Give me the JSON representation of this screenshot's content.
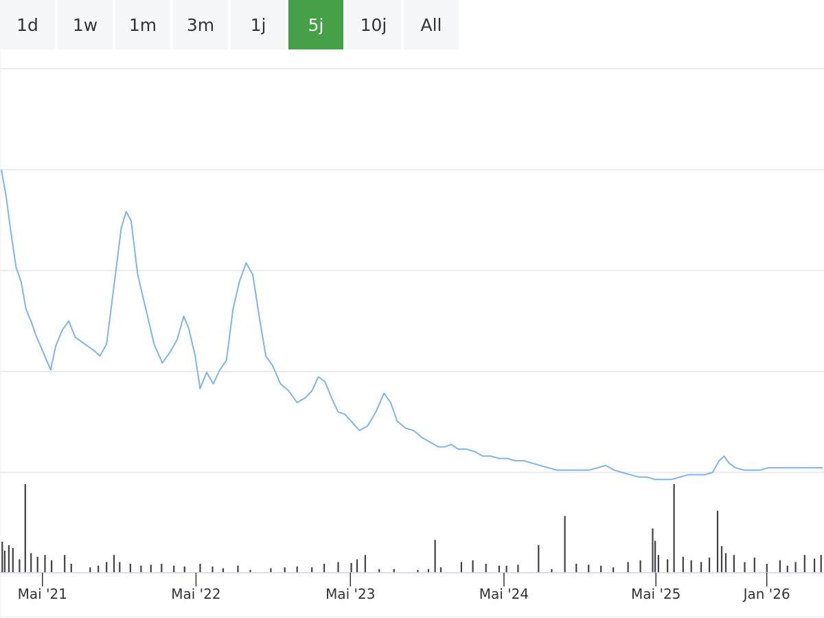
{
  "range_selector": {
    "buttons": [
      "1d",
      "1w",
      "1m",
      "3m",
      "1j",
      "5j",
      "10j",
      "All"
    ],
    "active": "5j"
  },
  "colors": {
    "active_button": "#43a047",
    "button_bg": "#f6f7f8",
    "price_line": "#7cb5ec",
    "volume_bars": "#3f3f44",
    "gridlines": "#e6e6e6",
    "axis_line": "#ccd6eb"
  },
  "chart_data": [
    {
      "type": "line",
      "series": [
        {
          "values": [
            [
              0.0,
              100
            ],
            [
              0.006,
              88
            ],
            [
              0.012,
              72
            ],
            [
              0.018,
              58
            ],
            [
              0.024,
              52
            ],
            [
              0.03,
              40
            ],
            [
              0.036,
              35
            ],
            [
              0.042,
              29
            ],
            [
              0.048,
              24
            ],
            [
              0.054,
              19
            ],
            [
              0.06,
              14
            ],
            [
              0.066,
              24
            ],
            [
              0.074,
              31
            ],
            [
              0.082,
              35
            ],
            [
              0.09,
              28
            ],
            [
              0.098,
              26
            ],
            [
              0.106,
              24
            ],
            [
              0.114,
              22
            ],
            [
              0.12,
              20
            ],
            [
              0.128,
              25
            ],
            [
              0.136,
              47
            ],
            [
              0.146,
              75
            ],
            [
              0.152,
              82
            ],
            [
              0.158,
              78
            ],
            [
              0.166,
              55
            ],
            [
              0.176,
              40
            ],
            [
              0.186,
              25
            ],
            [
              0.196,
              17
            ],
            [
              0.206,
              22
            ],
            [
              0.214,
              27
            ],
            [
              0.222,
              37
            ],
            [
              0.228,
              32
            ],
            [
              0.236,
              20
            ],
            [
              0.242,
              6
            ],
            [
              0.25,
              13
            ],
            [
              0.258,
              8
            ],
            [
              0.266,
              14
            ],
            [
              0.274,
              18
            ],
            [
              0.282,
              40
            ],
            [
              0.29,
              52
            ],
            [
              0.298,
              60
            ],
            [
              0.306,
              55
            ],
            [
              0.314,
              37
            ],
            [
              0.322,
              20
            ],
            [
              0.33,
              16
            ],
            [
              0.34,
              8
            ],
            [
              0.35,
              5
            ],
            [
              0.36,
              0
            ],
            [
              0.37,
              2
            ],
            [
              0.378,
              5
            ],
            [
              0.386,
              11
            ],
            [
              0.394,
              9
            ],
            [
              0.402,
              2
            ],
            [
              0.41,
              -4
            ],
            [
              0.418,
              -5
            ],
            [
              0.426,
              -8
            ],
            [
              0.436,
              -12
            ],
            [
              0.446,
              -10
            ],
            [
              0.456,
              -4
            ],
            [
              0.466,
              4
            ],
            [
              0.474,
              0
            ],
            [
              0.482,
              -8
            ],
            [
              0.492,
              -11
            ],
            [
              0.502,
              -12
            ],
            [
              0.512,
              -15
            ],
            [
              0.522,
              -17
            ],
            [
              0.532,
              -19
            ],
            [
              0.54,
              -19
            ],
            [
              0.548,
              -18
            ],
            [
              0.556,
              -20
            ],
            [
              0.566,
              -20
            ],
            [
              0.576,
              -21
            ],
            [
              0.586,
              -23
            ],
            [
              0.596,
              -23
            ],
            [
              0.606,
              -24
            ],
            [
              0.616,
              -24
            ],
            [
              0.626,
              -25
            ],
            [
              0.636,
              -25
            ],
            [
              0.646,
              -26
            ],
            [
              0.656,
              -27
            ],
            [
              0.666,
              -28
            ],
            [
              0.676,
              -29
            ],
            [
              0.686,
              -29
            ],
            [
              0.696,
              -29
            ],
            [
              0.706,
              -29
            ],
            [
              0.716,
              -29
            ],
            [
              0.726,
              -28
            ],
            [
              0.736,
              -27
            ],
            [
              0.746,
              -29
            ],
            [
              0.756,
              -30
            ],
            [
              0.766,
              -31
            ],
            [
              0.776,
              -32
            ],
            [
              0.786,
              -32
            ],
            [
              0.796,
              -33
            ],
            [
              0.806,
              -33
            ],
            [
              0.816,
              -33
            ],
            [
              0.826,
              -32
            ],
            [
              0.836,
              -31
            ],
            [
              0.846,
              -31
            ],
            [
              0.856,
              -31
            ],
            [
              0.866,
              -30
            ],
            [
              0.874,
              -25
            ],
            [
              0.88,
              -23
            ],
            [
              0.886,
              -26
            ],
            [
              0.894,
              -28
            ],
            [
              0.904,
              -29
            ],
            [
              0.914,
              -29
            ],
            [
              0.924,
              -29
            ],
            [
              0.934,
              -28
            ],
            [
              0.944,
              -28
            ],
            [
              0.954,
              -28
            ],
            [
              0.964,
              -28
            ],
            [
              0.974,
              -28
            ],
            [
              0.984,
              -28
            ],
            [
              0.992,
              -28
            ],
            [
              1.0,
              -28
            ]
          ]
        }
      ],
      "x_ticks": [
        {
          "label": "Mai '21",
          "x": 0.05
        },
        {
          "label": "Mai '22",
          "x": 0.237
        },
        {
          "label": "Mai '23",
          "x": 0.425
        },
        {
          "label": "Mai '24",
          "x": 0.612
        },
        {
          "label": "Mai '25",
          "x": 0.797
        },
        {
          "label": "Jan '26",
          "x": 0.932
        }
      ],
      "ylim": [
        -30,
        100
      ],
      "grid": true
    },
    {
      "type": "bar",
      "series": [
        {
          "values": [
            [
              0.001,
              35
            ],
            [
              0.004,
              25
            ],
            [
              0.009,
              31
            ],
            [
              0.014,
              28
            ],
            [
              0.022,
              15
            ],
            [
              0.029,
              100
            ],
            [
              0.036,
              22
            ],
            [
              0.044,
              18
            ],
            [
              0.053,
              20
            ],
            [
              0.061,
              14
            ],
            [
              0.077,
              20
            ],
            [
              0.085,
              10
            ],
            [
              0.108,
              6
            ],
            [
              0.118,
              8
            ],
            [
              0.128,
              12
            ],
            [
              0.137,
              20
            ],
            [
              0.144,
              12
            ],
            [
              0.157,
              10
            ],
            [
              0.17,
              8
            ],
            [
              0.182,
              9
            ],
            [
              0.195,
              10
            ],
            [
              0.21,
              8
            ],
            [
              0.223,
              7
            ],
            [
              0.242,
              10
            ],
            [
              0.257,
              7
            ],
            [
              0.27,
              5
            ],
            [
              0.288,
              8
            ],
            [
              0.303,
              3
            ],
            [
              0.328,
              5
            ],
            [
              0.345,
              6
            ],
            [
              0.36,
              7
            ],
            [
              0.378,
              6
            ],
            [
              0.393,
              10
            ],
            [
              0.41,
              12
            ],
            [
              0.426,
              11
            ],
            [
              0.433,
              15
            ],
            [
              0.443,
              20
            ],
            [
              0.46,
              4
            ],
            [
              0.478,
              4
            ],
            [
              0.507,
              3
            ],
            [
              0.52,
              4
            ],
            [
              0.528,
              37
            ],
            [
              0.535,
              6
            ],
            [
              0.56,
              12
            ],
            [
              0.574,
              14
            ],
            [
              0.59,
              10
            ],
            [
              0.606,
              8
            ],
            [
              0.615,
              8
            ],
            [
              0.629,
              9
            ],
            [
              0.654,
              31
            ],
            [
              0.67,
              4
            ],
            [
              0.686,
              64
            ],
            [
              0.7,
              10
            ],
            [
              0.715,
              9
            ],
            [
              0.73,
              8
            ],
            [
              0.745,
              6
            ],
            [
              0.763,
              12
            ],
            [
              0.778,
              14
            ],
            [
              0.793,
              50
            ],
            [
              0.796,
              36
            ],
            [
              0.8,
              20
            ],
            [
              0.811,
              15
            ],
            [
              0.819,
              100
            ],
            [
              0.83,
              18
            ],
            [
              0.84,
              14
            ],
            [
              0.852,
              12
            ],
            [
              0.862,
              17
            ],
            [
              0.872,
              70
            ],
            [
              0.877,
              30
            ],
            [
              0.882,
              22
            ],
            [
              0.892,
              20
            ],
            [
              0.905,
              12
            ],
            [
              0.917,
              17
            ],
            [
              0.932,
              10
            ],
            [
              0.948,
              14
            ],
            [
              0.957,
              8
            ],
            [
              0.967,
              12
            ],
            [
              0.978,
              20
            ],
            [
              0.99,
              16
            ],
            [
              0.998,
              20
            ]
          ]
        }
      ]
    }
  ]
}
